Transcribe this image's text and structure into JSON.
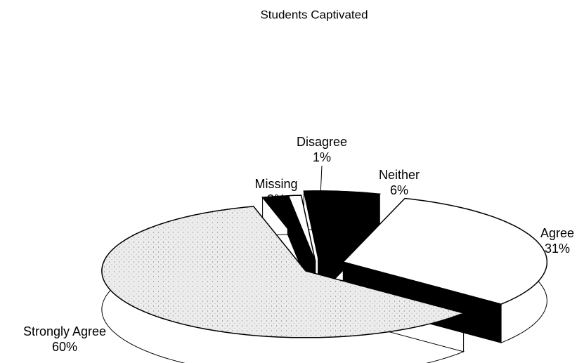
{
  "chart_data": {
    "type": "pie",
    "title": "Students Captivated",
    "categories": [
      "Neither",
      "Agree",
      "Strongly Agree",
      "Missing",
      "Disagree"
    ],
    "values": [
      6,
      31,
      60,
      2,
      1
    ],
    "value_labels": [
      "6%",
      "31%",
      "60%",
      "2%",
      "1%"
    ],
    "colors": [
      "#000000",
      "#ffffff",
      "#e6e6e6",
      "#000000",
      "#ffffff"
    ],
    "three_d": true
  }
}
